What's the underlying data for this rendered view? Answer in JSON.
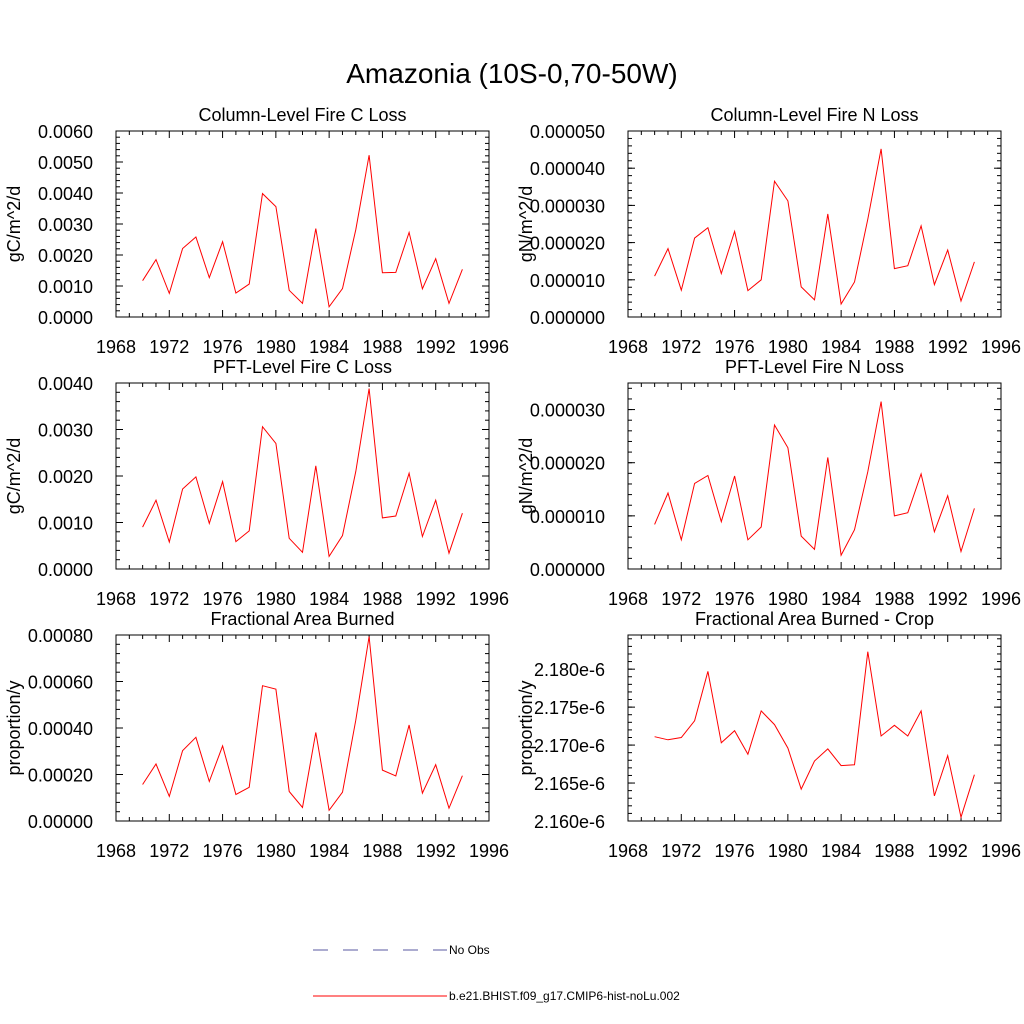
{
  "figure_title": "Amazonia (10S-0,70-50W)",
  "legend": {
    "items": [
      {
        "label": "No Obs",
        "color": "#5a5aa0",
        "style": "dashed"
      },
      {
        "label": "b.e21.BHIST.f09_g17.CMIP6-hist-noLu.002",
        "color": "#ff0000",
        "style": "solid"
      }
    ]
  },
  "chart_data": [
    {
      "type": "line",
      "title": "Column-Level Fire C Loss",
      "ylabel": "gC/m^2/d",
      "xlim": [
        1968,
        1996
      ],
      "xticks": [
        1968,
        1972,
        1976,
        1980,
        1984,
        1988,
        1992,
        1996
      ],
      "ylim": [
        0,
        0.006
      ],
      "yticks": [
        0,
        0.001,
        0.002,
        0.003,
        0.004,
        0.005,
        0.006
      ],
      "ytick_labels": [
        "0.0000",
        "0.0010",
        "0.0020",
        "0.0030",
        "0.0040",
        "0.0050",
        "0.0060"
      ],
      "x": [
        1970,
        1971,
        1972,
        1973,
        1974,
        1975,
        1976,
        1977,
        1978,
        1979,
        1980,
        1981,
        1982,
        1983,
        1984,
        1985,
        1986,
        1987,
        1988,
        1989,
        1990,
        1991,
        1992,
        1993,
        1994
      ],
      "series": [
        {
          "color": "#ff0000",
          "values": [
            0.00117,
            0.00185,
            0.00076,
            0.00221,
            0.00258,
            0.00127,
            0.00243,
            0.00077,
            0.00106,
            0.00398,
            0.00356,
            0.00086,
            0.00044,
            0.00285,
            0.00033,
            0.00092,
            0.00282,
            0.00522,
            0.00143,
            0.00144,
            0.00273,
            0.00091,
            0.00188,
            0.00044,
            0.00154
          ]
        }
      ]
    },
    {
      "type": "line",
      "title": "Column-Level Fire N Loss",
      "ylabel": "gN/m^2/d",
      "xlim": [
        1968,
        1996
      ],
      "xticks": [
        1968,
        1972,
        1976,
        1980,
        1984,
        1988,
        1992,
        1996
      ],
      "ylim": [
        0,
        5e-05
      ],
      "yticks": [
        0,
        1e-05,
        2e-05,
        3e-05,
        4e-05,
        5e-05
      ],
      "ytick_labels": [
        "0.000000",
        "0.000010",
        "0.000020",
        "0.000030",
        "0.000040",
        "0.000050"
      ],
      "x": [
        1970,
        1971,
        1972,
        1973,
        1974,
        1975,
        1976,
        1977,
        1978,
        1979,
        1980,
        1981,
        1982,
        1983,
        1984,
        1985,
        1986,
        1987,
        1988,
        1989,
        1990,
        1991,
        1992,
        1993,
        1994
      ],
      "series": [
        {
          "color": "#ff0000",
          "values": [
            1.1e-05,
            1.84e-05,
            7.2e-06,
            2.12e-05,
            2.4e-05,
            1.17e-05,
            2.3e-05,
            7.1e-06,
            1e-05,
            3.65e-05,
            3.12e-05,
            8.1e-06,
            4.6e-06,
            2.77e-05,
            3.5e-06,
            9.4e-06,
            2.63e-05,
            4.52e-05,
            1.3e-05,
            1.38e-05,
            2.45e-05,
            8.7e-06,
            1.8e-05,
            4.3e-06,
            1.48e-05
          ]
        }
      ]
    },
    {
      "type": "line",
      "title": "PFT-Level Fire C Loss",
      "ylabel": "gC/m^2/d",
      "xlim": [
        1968,
        1996
      ],
      "xticks": [
        1968,
        1972,
        1976,
        1980,
        1984,
        1988,
        1992,
        1996
      ],
      "ylim": [
        0,
        0.004
      ],
      "yticks": [
        0,
        0.001,
        0.002,
        0.003,
        0.004
      ],
      "ytick_labels": [
        "0.0000",
        "0.0010",
        "0.0020",
        "0.0030",
        "0.0040"
      ],
      "x": [
        1970,
        1971,
        1972,
        1973,
        1974,
        1975,
        1976,
        1977,
        1978,
        1979,
        1980,
        1981,
        1982,
        1983,
        1984,
        1985,
        1986,
        1987,
        1988,
        1989,
        1990,
        1991,
        1992,
        1993,
        1994
      ],
      "series": [
        {
          "color": "#ff0000",
          "values": [
            0.0009,
            0.00148,
            0.00058,
            0.00172,
            0.00198,
            0.00098,
            0.00188,
            0.00059,
            0.00082,
            0.00306,
            0.0027,
            0.00066,
            0.00036,
            0.00222,
            0.00027,
            0.00072,
            0.0021,
            0.00388,
            0.0011,
            0.00114,
            0.00206,
            0.0007,
            0.00148,
            0.00034,
            0.0012
          ]
        }
      ]
    },
    {
      "type": "line",
      "title": "PFT-Level Fire N Loss",
      "ylabel": "gN/m^2/d",
      "xlim": [
        1968,
        1996
      ],
      "xticks": [
        1968,
        1972,
        1976,
        1980,
        1984,
        1988,
        1992,
        1996
      ],
      "ylim": [
        0,
        3.5e-05
      ],
      "yticks": [
        0,
        1e-05,
        2e-05,
        3e-05
      ],
      "ytick_labels": [
        "0.000000",
        "0.000010",
        "0.000020",
        "0.000030"
      ],
      "x": [
        1970,
        1971,
        1972,
        1973,
        1974,
        1975,
        1976,
        1977,
        1978,
        1979,
        1980,
        1981,
        1982,
        1983,
        1984,
        1985,
        1986,
        1987,
        1988,
        1989,
        1990,
        1991,
        1992,
        1993,
        1994
      ],
      "series": [
        {
          "color": "#ff0000",
          "values": [
            8.4e-06,
            1.43e-05,
            5.5e-06,
            1.61e-05,
            1.76e-05,
            8.9e-06,
            1.75e-05,
            5.5e-06,
            7.9e-06,
            2.71e-05,
            2.28e-05,
            6.2e-06,
            3.7e-06,
            2.1e-05,
            2.6e-06,
            7.4e-06,
            1.83e-05,
            3.15e-05,
            1e-05,
            1.06e-05,
            1.79e-05,
            7e-06,
            1.38e-05,
            3.3e-06,
            1.14e-05
          ]
        }
      ]
    },
    {
      "type": "line",
      "title": "Fractional Area Burned",
      "ylabel": "proportion/y",
      "xlim": [
        1968,
        1996
      ],
      "xticks": [
        1968,
        1972,
        1976,
        1980,
        1984,
        1988,
        1992,
        1996
      ],
      "ylim": [
        0,
        0.0008
      ],
      "yticks": [
        0,
        0.0002,
        0.0004,
        0.0006,
        0.0008
      ],
      "ytick_labels": [
        "0.00000",
        "0.00020",
        "0.00040",
        "0.00060",
        "0.00080"
      ],
      "x": [
        1970,
        1971,
        1972,
        1973,
        1974,
        1975,
        1976,
        1977,
        1978,
        1979,
        1980,
        1981,
        1982,
        1983,
        1984,
        1985,
        1986,
        1987,
        1988,
        1989,
        1990,
        1991,
        1992,
        1993,
        1994
      ],
      "series": [
        {
          "color": "#ff0000",
          "values": [
            0.000157,
            0.000245,
            0.000106,
            0.000303,
            0.00036,
            0.00017,
            0.000323,
            0.000114,
            0.000145,
            0.000582,
            0.000567,
            0.000127,
            5.8e-05,
            0.000381,
            4.6e-05,
            0.000124,
            0.000434,
            0.000793,
            0.000219,
            0.000194,
            0.000413,
            0.00012,
            0.000242,
            5.5e-05,
            0.000195
          ]
        }
      ]
    },
    {
      "type": "line",
      "title": "Fractional Area Burned - Crop",
      "ylabel": "proportion/y",
      "xlim": [
        1968,
        1996
      ],
      "xticks": [
        1968,
        1972,
        1976,
        1980,
        1984,
        1988,
        1992,
        1996
      ],
      "ylim": [
        2.16e-06,
        2.1845e-06
      ],
      "yticks": [
        2.16e-06,
        2.165e-06,
        2.17e-06,
        2.175e-06,
        2.18e-06
      ],
      "ytick_labels": [
        "2.160e-6",
        "2.165e-6",
        "2.170e-6",
        "2.175e-6",
        "2.180e-6"
      ],
      "x": [
        1970,
        1971,
        1972,
        1973,
        1974,
        1975,
        1976,
        1977,
        1978,
        1979,
        1980,
        1981,
        1982,
        1983,
        1984,
        1985,
        1986,
        1987,
        1988,
        1989,
        1990,
        1991,
        1992,
        1993,
        1994
      ],
      "series": [
        {
          "color": "#ff0000",
          "values": [
            2.1711e-06,
            2.1707e-06,
            2.171e-06,
            2.1732e-06,
            2.1797e-06,
            2.1703e-06,
            2.1719e-06,
            2.1688e-06,
            2.1745e-06,
            2.1727e-06,
            2.1696e-06,
            2.1642e-06,
            2.1679e-06,
            2.1695e-06,
            2.1673e-06,
            2.1674e-06,
            2.1823e-06,
            2.1712e-06,
            2.1726e-06,
            2.1712e-06,
            2.1745e-06,
            2.1633e-06,
            2.1686e-06,
            2.1605e-06,
            2.1661e-06
          ]
        }
      ]
    }
  ]
}
